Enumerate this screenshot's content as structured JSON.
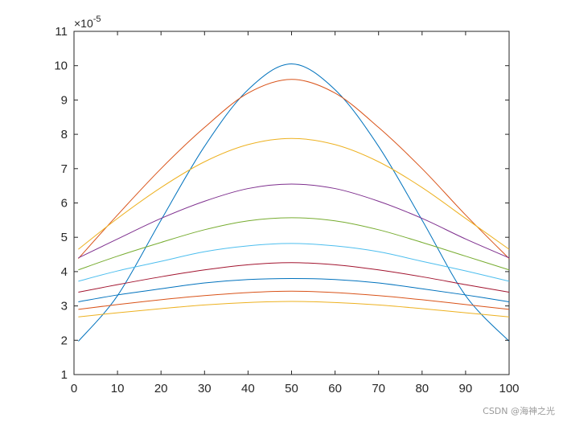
{
  "chart_data": {
    "type": "line",
    "xlim": [
      0,
      100
    ],
    "ylim": [
      1,
      11
    ],
    "y_exponent_label": "-5",
    "y_multiplier_prefix": "×10",
    "xticks": [
      0,
      10,
      20,
      30,
      40,
      50,
      60,
      70,
      80,
      90,
      100
    ],
    "yticks": [
      1,
      2,
      3,
      4,
      5,
      6,
      7,
      8,
      9,
      10,
      11
    ],
    "grid": false,
    "box": true,
    "series": [
      {
        "color": "#0072BD",
        "x": [
          1,
          10,
          20,
          30,
          40,
          50,
          60,
          70,
          80,
          90,
          100
        ],
        "y": [
          1.97,
          3.3,
          5.5,
          7.65,
          9.3,
          10.05,
          9.3,
          7.65,
          5.5,
          3.3,
          1.97
        ]
      },
      {
        "color": "#D95319",
        "x": [
          1,
          10,
          20,
          30,
          40,
          50,
          60,
          70,
          80,
          90,
          100
        ],
        "y": [
          4.38,
          5.65,
          7.0,
          8.2,
          9.2,
          9.6,
          9.2,
          8.2,
          7.0,
          5.65,
          4.38
        ]
      },
      {
        "color": "#EDB120",
        "x": [
          1,
          10,
          20,
          30,
          40,
          50,
          60,
          70,
          80,
          90,
          100
        ],
        "y": [
          4.65,
          5.55,
          6.45,
          7.2,
          7.7,
          7.88,
          7.7,
          7.2,
          6.45,
          5.55,
          4.65
        ]
      },
      {
        "color": "#7E2F8E",
        "x": [
          1,
          10,
          20,
          30,
          40,
          50,
          60,
          70,
          80,
          90,
          100
        ],
        "y": [
          4.4,
          4.95,
          5.55,
          6.05,
          6.42,
          6.55,
          6.42,
          6.05,
          5.55,
          4.95,
          4.4
        ]
      },
      {
        "color": "#77AC30",
        "x": [
          1,
          10,
          20,
          30,
          40,
          50,
          60,
          70,
          80,
          90,
          100
        ],
        "y": [
          4.05,
          4.45,
          4.85,
          5.22,
          5.48,
          5.57,
          5.48,
          5.22,
          4.85,
          4.45,
          4.05
        ]
      },
      {
        "color": "#4DBEEE",
        "x": [
          1,
          10,
          20,
          30,
          40,
          50,
          60,
          70,
          80,
          90,
          100
        ],
        "y": [
          3.72,
          4.02,
          4.3,
          4.58,
          4.75,
          4.82,
          4.75,
          4.58,
          4.3,
          4.02,
          3.72
        ]
      },
      {
        "color": "#A2142F",
        "x": [
          1,
          10,
          20,
          30,
          40,
          50,
          60,
          70,
          80,
          90,
          100
        ],
        "y": [
          3.4,
          3.62,
          3.85,
          4.05,
          4.2,
          4.26,
          4.2,
          4.05,
          3.85,
          3.62,
          3.4
        ]
      },
      {
        "color": "#0072BD",
        "x": [
          1,
          10,
          20,
          30,
          40,
          50,
          60,
          70,
          80,
          90,
          100
        ],
        "y": [
          3.12,
          3.32,
          3.5,
          3.67,
          3.77,
          3.8,
          3.77,
          3.67,
          3.5,
          3.32,
          3.12
        ]
      },
      {
        "color": "#D95319",
        "x": [
          1,
          10,
          20,
          30,
          40,
          50,
          60,
          70,
          80,
          90,
          100
        ],
        "y": [
          2.9,
          3.04,
          3.18,
          3.3,
          3.39,
          3.43,
          3.39,
          3.3,
          3.18,
          3.04,
          2.9
        ]
      },
      {
        "color": "#EDB120",
        "x": [
          1,
          10,
          20,
          30,
          40,
          50,
          60,
          70,
          80,
          90,
          100
        ],
        "y": [
          2.68,
          2.8,
          2.92,
          3.03,
          3.1,
          3.13,
          3.1,
          3.03,
          2.92,
          2.8,
          2.68
        ]
      }
    ]
  },
  "watermark": "CSDN @海神之光"
}
